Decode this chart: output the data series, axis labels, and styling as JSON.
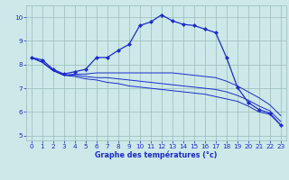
{
  "xlabel": "Graphe des températures (°c)",
  "bg_color": "#cce8e8",
  "line_color": "#1a2acc",
  "grid_color": "#99bbbb",
  "axis_label_color": "#1a2acc",
  "ylim": [
    4.8,
    10.5
  ],
  "xlim": [
    -0.5,
    23.5
  ],
  "yticks": [
    5,
    6,
    7,
    8,
    9,
    10
  ],
  "xticks": [
    0,
    1,
    2,
    3,
    4,
    5,
    6,
    7,
    8,
    9,
    10,
    11,
    12,
    13,
    14,
    15,
    16,
    17,
    18,
    19,
    20,
    21,
    22,
    23
  ],
  "main_series": [
    8.3,
    8.2,
    7.8,
    7.6,
    7.7,
    7.8,
    8.3,
    8.3,
    8.6,
    8.85,
    9.65,
    9.8,
    10.1,
    9.85,
    9.7,
    9.65,
    9.5,
    9.35,
    8.3,
    7.05,
    6.4,
    6.1,
    5.95,
    5.45
  ],
  "flat_series": [
    [
      8.3,
      8.1,
      7.75,
      7.55,
      7.6,
      7.6,
      7.65,
      7.65,
      7.65,
      7.65,
      7.65,
      7.65,
      7.65,
      7.65,
      7.6,
      7.55,
      7.5,
      7.45,
      7.3,
      7.1,
      6.85,
      6.6,
      6.3,
      5.85
    ],
    [
      8.3,
      8.1,
      7.75,
      7.55,
      7.55,
      7.5,
      7.45,
      7.45,
      7.4,
      7.35,
      7.3,
      7.25,
      7.2,
      7.15,
      7.1,
      7.05,
      7.0,
      6.95,
      6.85,
      6.7,
      6.5,
      6.25,
      6.05,
      5.6
    ],
    [
      8.3,
      8.1,
      7.75,
      7.55,
      7.5,
      7.4,
      7.35,
      7.25,
      7.2,
      7.1,
      7.05,
      7.0,
      6.95,
      6.9,
      6.85,
      6.8,
      6.75,
      6.65,
      6.55,
      6.45,
      6.25,
      6.0,
      5.9,
      5.45
    ]
  ]
}
